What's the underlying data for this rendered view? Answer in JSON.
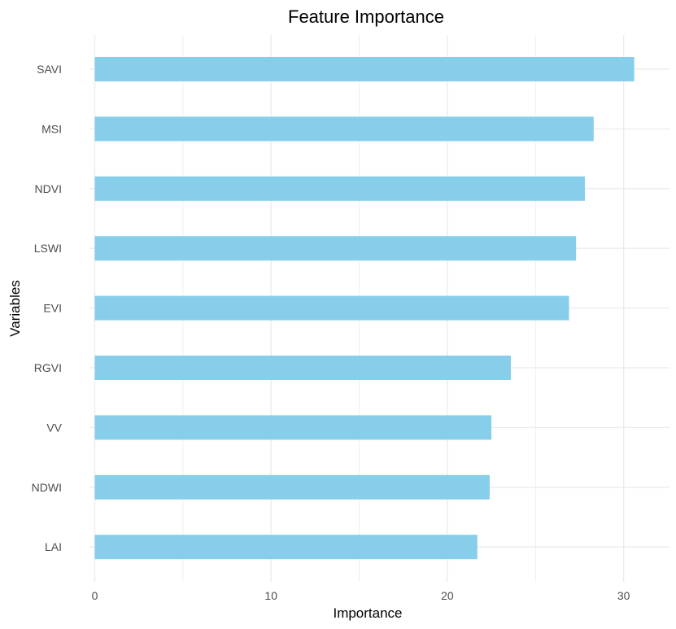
{
  "chart_data": {
    "type": "bar",
    "orientation": "horizontal",
    "title": "Feature Importance",
    "xlabel": "Importance",
    "ylabel": "Variables",
    "categories": [
      "SAVI",
      "MSI",
      "NDVI",
      "LSWI",
      "EVI",
      "RGVI",
      "VV",
      "NDWI",
      "LAI"
    ],
    "values": [
      30.6,
      28.3,
      27.8,
      27.3,
      26.9,
      23.6,
      22.5,
      22.4,
      21.7
    ],
    "xlim": [
      -0.3,
      32.6
    ],
    "xticks": [
      0,
      10,
      20,
      30
    ],
    "xtick_labels": [
      "0",
      "10",
      "20",
      "30"
    ],
    "grid": true,
    "bar_color": "#87CEEB",
    "grid_color": "#ebebeb"
  }
}
